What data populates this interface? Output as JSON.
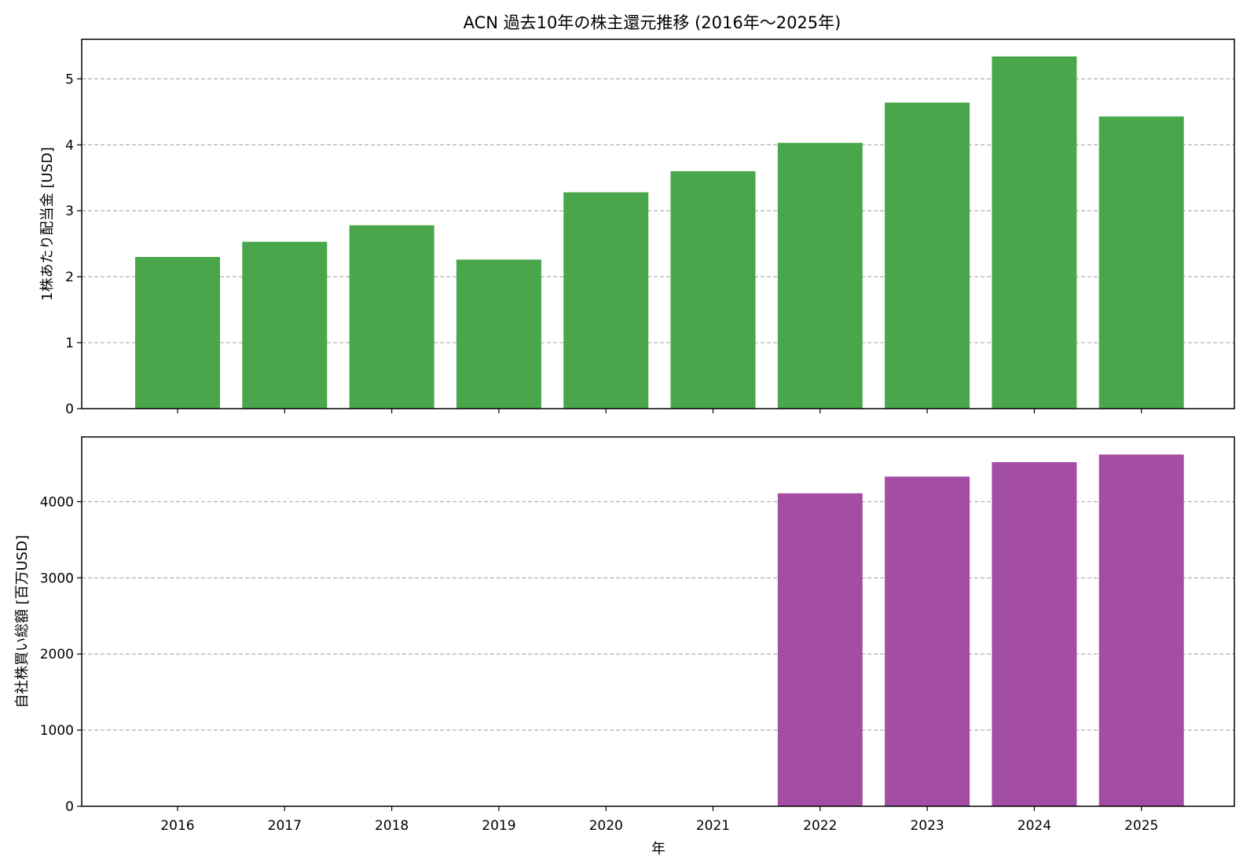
{
  "title": "ACN 過去10年の株主還元推移 (2016年～2025年)",
  "xlabel": "年",
  "chart_data": [
    {
      "type": "bar",
      "title": "ACN 過去10年の株主還元推移 (2016年～2025年)",
      "xlabel": "",
      "ylabel": "1株あたり配当金 [USD]",
      "categories": [
        "2016",
        "2017",
        "2018",
        "2019",
        "2020",
        "2021",
        "2022",
        "2023",
        "2024",
        "2025"
      ],
      "values": [
        2.3,
        2.53,
        2.78,
        2.26,
        3.28,
        3.6,
        4.03,
        4.64,
        5.34,
        4.43
      ],
      "ylim": [
        0,
        5.6
      ],
      "yticks": [
        0,
        1,
        2,
        3,
        4,
        5
      ],
      "grid": "y-dashed",
      "color": "#4aa64a"
    },
    {
      "type": "bar",
      "title": "",
      "xlabel": "年",
      "ylabel": "自社株買い総額 [百万USD]",
      "categories": [
        "2016",
        "2017",
        "2018",
        "2019",
        "2020",
        "2021",
        "2022",
        "2023",
        "2024",
        "2025"
      ],
      "values": [
        0,
        0,
        0,
        0,
        0,
        0,
        4110,
        4330,
        4520,
        4620
      ],
      "ylim": [
        0,
        4851
      ],
      "yticks": [
        0,
        1000,
        2000,
        3000,
        4000
      ],
      "grid": "y-dashed",
      "color": "#a44da4"
    }
  ]
}
